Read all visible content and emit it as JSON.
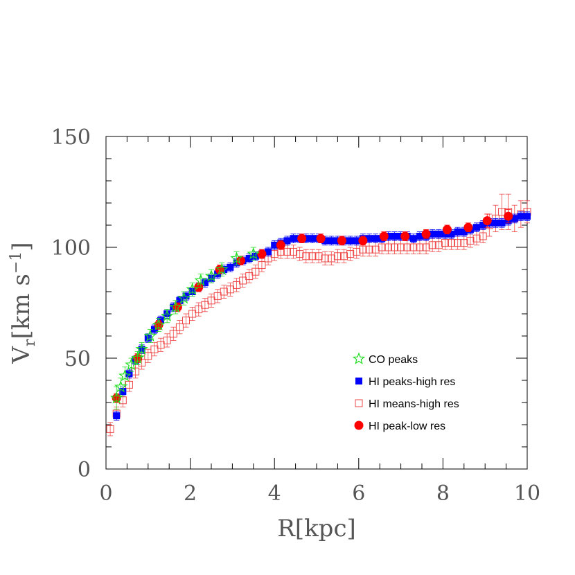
{
  "chart_data": {
    "type": "scatter",
    "title": "",
    "xlabel": "R[kpc]",
    "ylabel_main": "V",
    "ylabel_sub": "r",
    "ylabel_rest": "[km s",
    "ylabel_sup": "−1",
    "ylabel_close": "]",
    "xlim": [
      0,
      10
    ],
    "ylim": [
      0,
      150
    ],
    "x_ticks": [
      0,
      2,
      4,
      6,
      8,
      10
    ],
    "x_tick_labels": [
      "0",
      "2",
      "4",
      "6",
      "8",
      "10"
    ],
    "y_ticks": [
      0,
      50,
      100,
      150
    ],
    "y_tick_labels": [
      "0",
      "50",
      "100",
      "150"
    ],
    "grid": false,
    "legend_position": "lower-right",
    "series": [
      {
        "name": "CO peaks",
        "marker": "open-star",
        "color": "#22dd22",
        "x": [
          0.25,
          0.35,
          0.45,
          0.6,
          0.75,
          0.85,
          1.05,
          1.25,
          1.45,
          1.65,
          1.85,
          2.05,
          2.25,
          2.5,
          2.75,
          3.1,
          3.5
        ],
        "y": [
          32,
          37,
          42,
          47,
          50,
          54,
          60,
          65,
          69,
          73,
          77,
          81,
          85,
          87,
          90,
          95,
          97
        ],
        "err": [
          5,
          4,
          4,
          3,
          3,
          3,
          3,
          3,
          3,
          3,
          3,
          3,
          3,
          3,
          3,
          3,
          3
        ]
      },
      {
        "name": "HI peaks-high res",
        "marker": "filled-square",
        "color": "#0000ff",
        "x": [
          0.25,
          0.4,
          0.55,
          0.7,
          0.85,
          1.0,
          1.15,
          1.3,
          1.45,
          1.6,
          1.75,
          1.9,
          2.05,
          2.2,
          2.35,
          2.5,
          2.65,
          2.8,
          2.95,
          3.1,
          3.25,
          3.4,
          3.55,
          3.7,
          3.85,
          4.0,
          4.15,
          4.3,
          4.45,
          4.6,
          4.75,
          4.9,
          5.05,
          5.2,
          5.35,
          5.5,
          5.65,
          5.8,
          5.95,
          6.1,
          6.25,
          6.4,
          6.55,
          6.7,
          6.85,
          7.0,
          7.15,
          7.3,
          7.45,
          7.6,
          7.75,
          7.9,
          8.05,
          8.2,
          8.35,
          8.5,
          8.65,
          8.8,
          8.95,
          9.1,
          9.25,
          9.4,
          9.55,
          9.7,
          9.85,
          10.0
        ],
        "y": [
          24,
          35,
          43,
          49,
          54,
          59,
          63,
          67,
          70,
          73,
          76,
          78,
          80,
          82,
          84,
          86,
          88,
          90,
          91,
          93,
          94,
          95,
          96,
          97,
          98,
          101,
          102,
          103,
          104,
          104,
          104,
          104,
          104,
          103,
          103,
          103,
          103,
          103,
          103,
          104,
          104,
          104,
          104,
          105,
          105,
          105,
          105,
          104,
          105,
          105,
          106,
          106,
          106,
          106,
          107,
          107,
          108,
          109,
          110,
          111,
          111,
          111,
          112,
          113,
          114,
          114
        ],
        "err": [
          2,
          2,
          2,
          2,
          2,
          2,
          2,
          2,
          2,
          2,
          2,
          2,
          2,
          2,
          2,
          2,
          2,
          2,
          2,
          2,
          2,
          2,
          2,
          2,
          2,
          2,
          2,
          2,
          2,
          2,
          2,
          2,
          2,
          2,
          2,
          2,
          2,
          2,
          2,
          2,
          2,
          2,
          2,
          2,
          2,
          2,
          2,
          2,
          2,
          2,
          2,
          2,
          2,
          2,
          2,
          2,
          2,
          2,
          2,
          2,
          2,
          2,
          2,
          2,
          2,
          2
        ]
      },
      {
        "name": "HI means-high res",
        "marker": "open-square",
        "color": "#ee4444",
        "x": [
          0.1,
          0.25,
          0.4,
          0.55,
          0.7,
          0.85,
          1.0,
          1.15,
          1.3,
          1.45,
          1.6,
          1.75,
          1.9,
          2.05,
          2.2,
          2.35,
          2.5,
          2.65,
          2.8,
          2.95,
          3.1,
          3.25,
          3.4,
          3.55,
          3.7,
          3.85,
          4.0,
          4.15,
          4.3,
          4.45,
          4.6,
          4.75,
          4.9,
          5.05,
          5.2,
          5.35,
          5.5,
          5.65,
          5.8,
          5.95,
          6.1,
          6.25,
          6.4,
          6.55,
          6.7,
          6.85,
          7.0,
          7.15,
          7.3,
          7.45,
          7.6,
          7.75,
          7.9,
          8.05,
          8.2,
          8.35,
          8.5,
          8.65,
          8.8,
          8.95,
          9.1,
          9.25,
          9.4,
          9.55,
          9.7,
          9.85,
          10.0
        ],
        "y": [
          18,
          25,
          31,
          38,
          44,
          48,
          51,
          54,
          56,
          58,
          61,
          64,
          67,
          70,
          72,
          74,
          76,
          78,
          80,
          81,
          83,
          85,
          87,
          89,
          92,
          95,
          97,
          98,
          98,
          98,
          97,
          96,
          96,
          96,
          95,
          95,
          96,
          96,
          97,
          98,
          99,
          99,
          99,
          100,
          100,
          100,
          100,
          100,
          100,
          100,
          100,
          101,
          101,
          102,
          102,
          102,
          102,
          103,
          104,
          105,
          110,
          113,
          116,
          116,
          113,
          115,
          116
        ],
        "err": [
          3,
          3,
          3,
          3,
          3,
          3,
          3,
          3,
          3,
          3,
          3,
          3,
          3,
          3,
          3,
          3,
          3,
          3,
          3,
          3,
          3,
          3,
          3,
          3,
          3,
          3,
          3,
          3,
          3,
          3,
          3,
          3,
          3,
          3,
          3,
          3,
          3,
          3,
          3,
          3,
          3,
          3,
          3,
          3,
          3,
          3,
          3,
          3,
          3,
          3,
          3,
          3,
          3,
          3,
          3,
          3,
          3,
          3,
          3,
          3,
          5,
          6,
          8,
          8,
          6,
          6,
          5
        ]
      },
      {
        "name": "HI peak-low res",
        "marker": "filled-circle",
        "color": "#ff0000",
        "x": [
          0.25,
          0.75,
          1.25,
          1.7,
          2.2,
          2.7,
          3.2,
          3.7,
          4.15,
          4.65,
          5.1,
          5.6,
          6.1,
          6.6,
          7.1,
          7.6,
          8.1,
          8.6,
          9.05,
          9.55
        ],
        "y": [
          32,
          50,
          65,
          73,
          82,
          90,
          94,
          97,
          101,
          104,
          104,
          103,
          103,
          105,
          105,
          106,
          108,
          109,
          112,
          114
        ],
        "err": [
          2,
          2,
          2,
          2,
          2,
          2,
          2,
          2,
          2,
          2,
          2,
          2,
          2,
          2,
          2,
          2,
          2,
          2,
          3,
          3
        ]
      }
    ]
  }
}
